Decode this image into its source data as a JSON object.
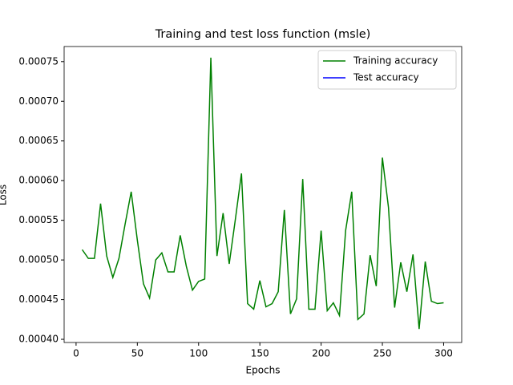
{
  "chart_data": {
    "type": "line",
    "title": "Training and test loss function (msle)",
    "xlabel": "Epochs",
    "ylabel": "Loss",
    "x": [
      5,
      10,
      15,
      20,
      25,
      30,
      35,
      40,
      45,
      50,
      55,
      60,
      65,
      70,
      75,
      80,
      85,
      90,
      95,
      100,
      105,
      110,
      115,
      120,
      125,
      130,
      135,
      140,
      145,
      150,
      155,
      160,
      165,
      170,
      175,
      180,
      185,
      190,
      195,
      200,
      205,
      210,
      215,
      220,
      225,
      230,
      235,
      240,
      245,
      250,
      255,
      260,
      265,
      270,
      275,
      280,
      285,
      290,
      295,
      300
    ],
    "series": [
      {
        "name": "Training accuracy",
        "color": "#008000",
        "values": [
          0.000513,
          0.000502,
          0.000502,
          0.000571,
          0.000505,
          0.000478,
          0.000502,
          0.000545,
          0.000586,
          0.000525,
          0.00047,
          0.000452,
          0.0005,
          0.000509,
          0.000485,
          0.000485,
          0.000531,
          0.000492,
          0.000462,
          0.000473,
          0.000476,
          0.000755,
          0.000505,
          0.000559,
          0.000495,
          0.000551,
          0.000609,
          0.000445,
          0.000438,
          0.000474,
          0.000441,
          0.000445,
          0.00046,
          0.000563,
          0.000432,
          0.000451,
          0.000602,
          0.000438,
          0.000438,
          0.000537,
          0.000436,
          0.000446,
          0.00043,
          0.000537,
          0.000586,
          0.000425,
          0.000432,
          0.000506,
          0.000467,
          0.000629,
          0.000566,
          0.00044,
          0.000497,
          0.00046,
          0.000507,
          0.000413,
          0.000498,
          0.000448,
          0.000445,
          0.000446
        ]
      },
      {
        "name": "Test accuracy",
        "color": "#0000ff",
        "values": [
          null,
          null,
          null,
          null,
          null,
          null,
          null,
          null,
          null,
          null,
          null,
          null,
          null,
          null,
          null,
          null,
          null,
          null,
          null,
          null,
          null,
          null,
          null,
          null,
          null,
          null,
          null,
          null,
          null,
          null,
          null,
          null,
          null,
          null,
          null,
          null,
          null,
          null,
          null,
          null,
          null,
          null,
          null,
          null,
          null,
          null,
          null,
          null,
          null,
          null,
          null,
          null,
          null,
          null,
          null,
          null,
          null,
          null,
          null,
          null
        ]
      }
    ],
    "xlim": [
      -9.75,
      314.75
    ],
    "xticks": [
      0,
      50,
      100,
      150,
      200,
      250,
      300
    ],
    "ylim": [
      0.000396,
      0.000769
    ],
    "yticks": [
      {
        "value": 0.0004,
        "label": "0.00040"
      },
      {
        "value": 0.00045,
        "label": "0.00045"
      },
      {
        "value": 0.0005,
        "label": "0.00050"
      },
      {
        "value": 0.00055,
        "label": "0.00055"
      },
      {
        "value": 0.0006,
        "label": "0.00060"
      },
      {
        "value": 0.00065,
        "label": "0.00065"
      },
      {
        "value": 0.0007,
        "label": "0.00070"
      },
      {
        "value": 0.00075,
        "label": "0.00075"
      }
    ],
    "legend": "upper right"
  }
}
